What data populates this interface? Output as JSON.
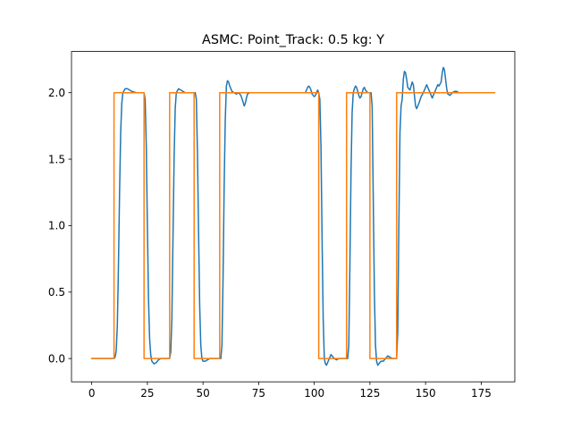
{
  "chart_data": {
    "type": "line",
    "title": "ASMC: Point_Track: 0.5 kg: Y",
    "xlabel": "",
    "ylabel": "",
    "xlim": [
      -9.1,
      190.1
    ],
    "ylim": [
      -0.175,
      2.31
    ],
    "xticks": [
      0,
      25,
      50,
      75,
      100,
      125,
      150,
      175
    ],
    "yticks": [
      0.0,
      0.5,
      1.0,
      1.5,
      2.0
    ],
    "ytick_format": "0.0",
    "grid": false,
    "legend": "none",
    "series": [
      {
        "color": "#1f77b4",
        "points": [
          [
            0,
            0
          ],
          [
            10,
            0
          ],
          [
            10.5,
            0.01
          ],
          [
            11,
            0.06
          ],
          [
            11.5,
            0.25
          ],
          [
            12,
            0.7
          ],
          [
            12.5,
            1.25
          ],
          [
            13,
            1.7
          ],
          [
            13.5,
            1.92
          ],
          [
            14,
            2.0
          ],
          [
            15,
            2.03
          ],
          [
            16,
            2.03
          ],
          [
            17,
            2.02
          ],
          [
            18,
            2.01
          ],
          [
            20,
            2.0
          ],
          [
            23.5,
            2.0
          ],
          [
            24,
            1.95
          ],
          [
            24.5,
            1.6
          ],
          [
            25,
            1.0
          ],
          [
            25.5,
            0.45
          ],
          [
            26,
            0.15
          ],
          [
            26.5,
            0.03
          ],
          [
            27,
            -0.02
          ],
          [
            28,
            -0.04
          ],
          [
            29,
            -0.03
          ],
          [
            30,
            -0.01
          ],
          [
            31,
            0.0
          ],
          [
            35,
            0.0
          ],
          [
            35.5,
            0.05
          ],
          [
            36,
            0.3
          ],
          [
            36.5,
            0.9
          ],
          [
            37,
            1.5
          ],
          [
            37.5,
            1.88
          ],
          [
            38,
            2.0
          ],
          [
            39,
            2.03
          ],
          [
            40,
            2.02
          ],
          [
            41,
            2.01
          ],
          [
            42,
            2.0
          ],
          [
            46.5,
            2.0
          ],
          [
            47,
            1.95
          ],
          [
            47.5,
            1.55
          ],
          [
            48,
            0.95
          ],
          [
            48.5,
            0.4
          ],
          [
            49,
            0.1
          ],
          [
            49.5,
            0.0
          ],
          [
            50,
            -0.02
          ],
          [
            51,
            -0.02
          ],
          [
            52,
            -0.01
          ],
          [
            53,
            0.0
          ],
          [
            58,
            0.0
          ],
          [
            58.5,
            0.1
          ],
          [
            59,
            0.6
          ],
          [
            59.5,
            1.3
          ],
          [
            60,
            1.8
          ],
          [
            60.5,
            2.05
          ],
          [
            61,
            2.09
          ],
          [
            61.5,
            2.08
          ],
          [
            62,
            2.05
          ],
          [
            63,
            2.01
          ],
          [
            64,
            2.0
          ],
          [
            65,
            1.99
          ],
          [
            66,
            2.0
          ],
          [
            67,
            1.98
          ],
          [
            68,
            1.93
          ],
          [
            68.5,
            1.9
          ],
          [
            69,
            1.92
          ],
          [
            69.5,
            1.96
          ],
          [
            70,
            1.99
          ],
          [
            71,
            2.0
          ],
          [
            72,
            2.0
          ],
          [
            96,
            2.0
          ],
          [
            96.5,
            2.02
          ],
          [
            97,
            2.04
          ],
          [
            97.5,
            2.05
          ],
          [
            98,
            2.04
          ],
          [
            98.5,
            2.02
          ],
          [
            99,
            1.99
          ],
          [
            100,
            1.97
          ],
          [
            100.5,
            1.98
          ],
          [
            101,
            2.0
          ],
          [
            101.5,
            2.02
          ],
          [
            102,
            2.0
          ],
          [
            102.5,
            1.95
          ],
          [
            103,
            1.6
          ],
          [
            103.5,
            0.9
          ],
          [
            104,
            0.3
          ],
          [
            104.5,
            0.0
          ],
          [
            105,
            -0.04
          ],
          [
            105.5,
            -0.05
          ],
          [
            106,
            -0.03
          ],
          [
            107,
            0.01
          ],
          [
            107.5,
            0.03
          ],
          [
            108,
            0.02
          ],
          [
            109,
            0.0
          ],
          [
            110,
            -0.01
          ],
          [
            111,
            0.0
          ],
          [
            115,
            0.0
          ],
          [
            115.5,
            0.1
          ],
          [
            116,
            0.7
          ],
          [
            116.5,
            1.4
          ],
          [
            117,
            1.85
          ],
          [
            117.5,
            2.0
          ],
          [
            118,
            2.03
          ],
          [
            118.5,
            2.05
          ],
          [
            119,
            2.04
          ],
          [
            119.5,
            2.01
          ],
          [
            120,
            1.98
          ],
          [
            120.5,
            1.96
          ],
          [
            121,
            1.97
          ],
          [
            121.5,
            2.0
          ],
          [
            122,
            2.03
          ],
          [
            122.5,
            2.04
          ],
          [
            123,
            2.02
          ],
          [
            124,
            2.0
          ],
          [
            125.5,
            2.0
          ],
          [
            126,
            1.9
          ],
          [
            126.5,
            1.2
          ],
          [
            127,
            0.5
          ],
          [
            127.5,
            0.1
          ],
          [
            128,
            -0.02
          ],
          [
            128.5,
            -0.05
          ],
          [
            129,
            -0.04
          ],
          [
            130,
            -0.02
          ],
          [
            131,
            -0.02
          ],
          [
            132,
            0.0
          ],
          [
            133,
            0.02
          ],
          [
            134,
            0.01
          ],
          [
            135,
            0.0
          ],
          [
            137,
            0.0
          ],
          [
            137.5,
            0.2
          ],
          [
            138,
            1.0
          ],
          [
            138.5,
            1.7
          ],
          [
            139,
            1.9
          ],
          [
            139.5,
            1.95
          ],
          [
            140,
            2.1
          ],
          [
            140.5,
            2.16
          ],
          [
            141,
            2.15
          ],
          [
            141.5,
            2.1
          ],
          [
            142,
            2.04
          ],
          [
            143,
            2.02
          ],
          [
            144,
            2.08
          ],
          [
            144.5,
            2.06
          ],
          [
            145,
            1.98
          ],
          [
            145.5,
            1.9
          ],
          [
            146,
            1.88
          ],
          [
            147,
            1.92
          ],
          [
            148,
            1.97
          ],
          [
            149,
            2.0
          ],
          [
            150,
            2.04
          ],
          [
            150.5,
            2.06
          ],
          [
            151,
            2.04
          ],
          [
            152,
            2.0
          ],
          [
            152.5,
            1.98
          ],
          [
            153,
            1.96
          ],
          [
            154,
            2.0
          ],
          [
            155,
            2.04
          ],
          [
            155.5,
            2.06
          ],
          [
            156,
            2.05
          ],
          [
            157,
            2.08
          ],
          [
            157.5,
            2.15
          ],
          [
            158,
            2.19
          ],
          [
            158.5,
            2.17
          ],
          [
            159,
            2.1
          ],
          [
            159.5,
            2.03
          ],
          [
            160,
            1.99
          ],
          [
            161,
            1.98
          ],
          [
            162,
            2.0
          ],
          [
            163,
            2.01
          ],
          [
            164,
            2.01
          ],
          [
            165,
            2.0
          ],
          [
            181,
            2.0
          ]
        ]
      },
      {
        "color": "#ff7f0e",
        "points": [
          [
            0,
            0
          ],
          [
            10,
            0
          ],
          [
            10,
            2
          ],
          [
            23.5,
            2
          ],
          [
            23.5,
            0
          ],
          [
            35,
            0
          ],
          [
            35,
            2
          ],
          [
            46,
            2
          ],
          [
            46,
            0
          ],
          [
            57.5,
            0
          ],
          [
            57.5,
            2
          ],
          [
            102,
            2
          ],
          [
            102,
            0
          ],
          [
            114.5,
            0
          ],
          [
            114.5,
            2
          ],
          [
            125,
            2
          ],
          [
            125,
            0
          ],
          [
            137,
            0
          ],
          [
            137,
            2
          ],
          [
            181,
            2
          ]
        ]
      }
    ]
  }
}
